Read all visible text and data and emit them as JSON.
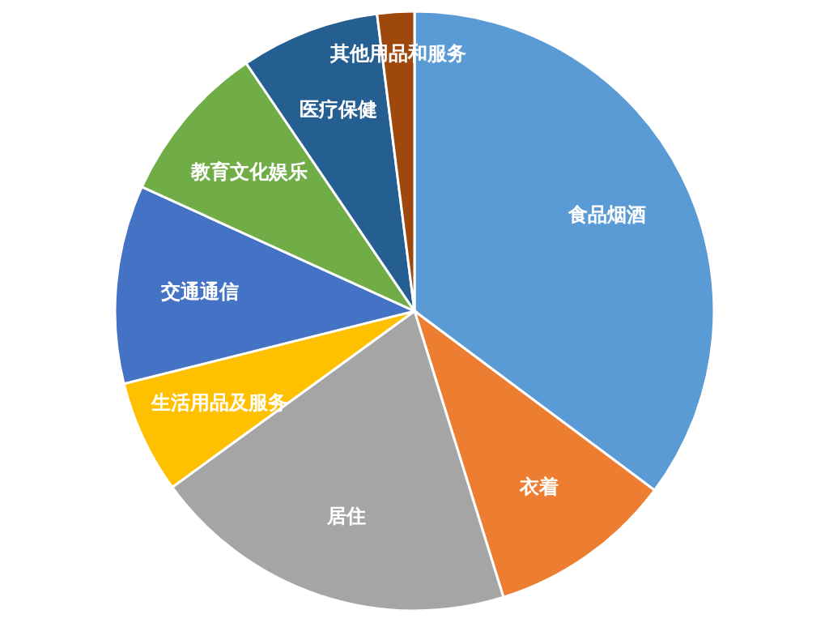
{
  "chart_data": {
    "type": "pie",
    "categories": [
      "食品烟酒",
      "衣着",
      "居住",
      "生活用品及服务",
      "交通通信",
      "教育文化娱乐",
      "医疗保健",
      "其他用品和服务"
    ],
    "values": [
      35.2,
      10.0,
      19.8,
      6.1,
      10.7,
      8.7,
      7.5,
      2.0
    ],
    "colors": [
      "#5b9bd5",
      "#ed7d31",
      "#a5a5a5",
      "#ffc000",
      "#4472c4",
      "#70ad47",
      "#255e91",
      "#9e480e"
    ]
  }
}
